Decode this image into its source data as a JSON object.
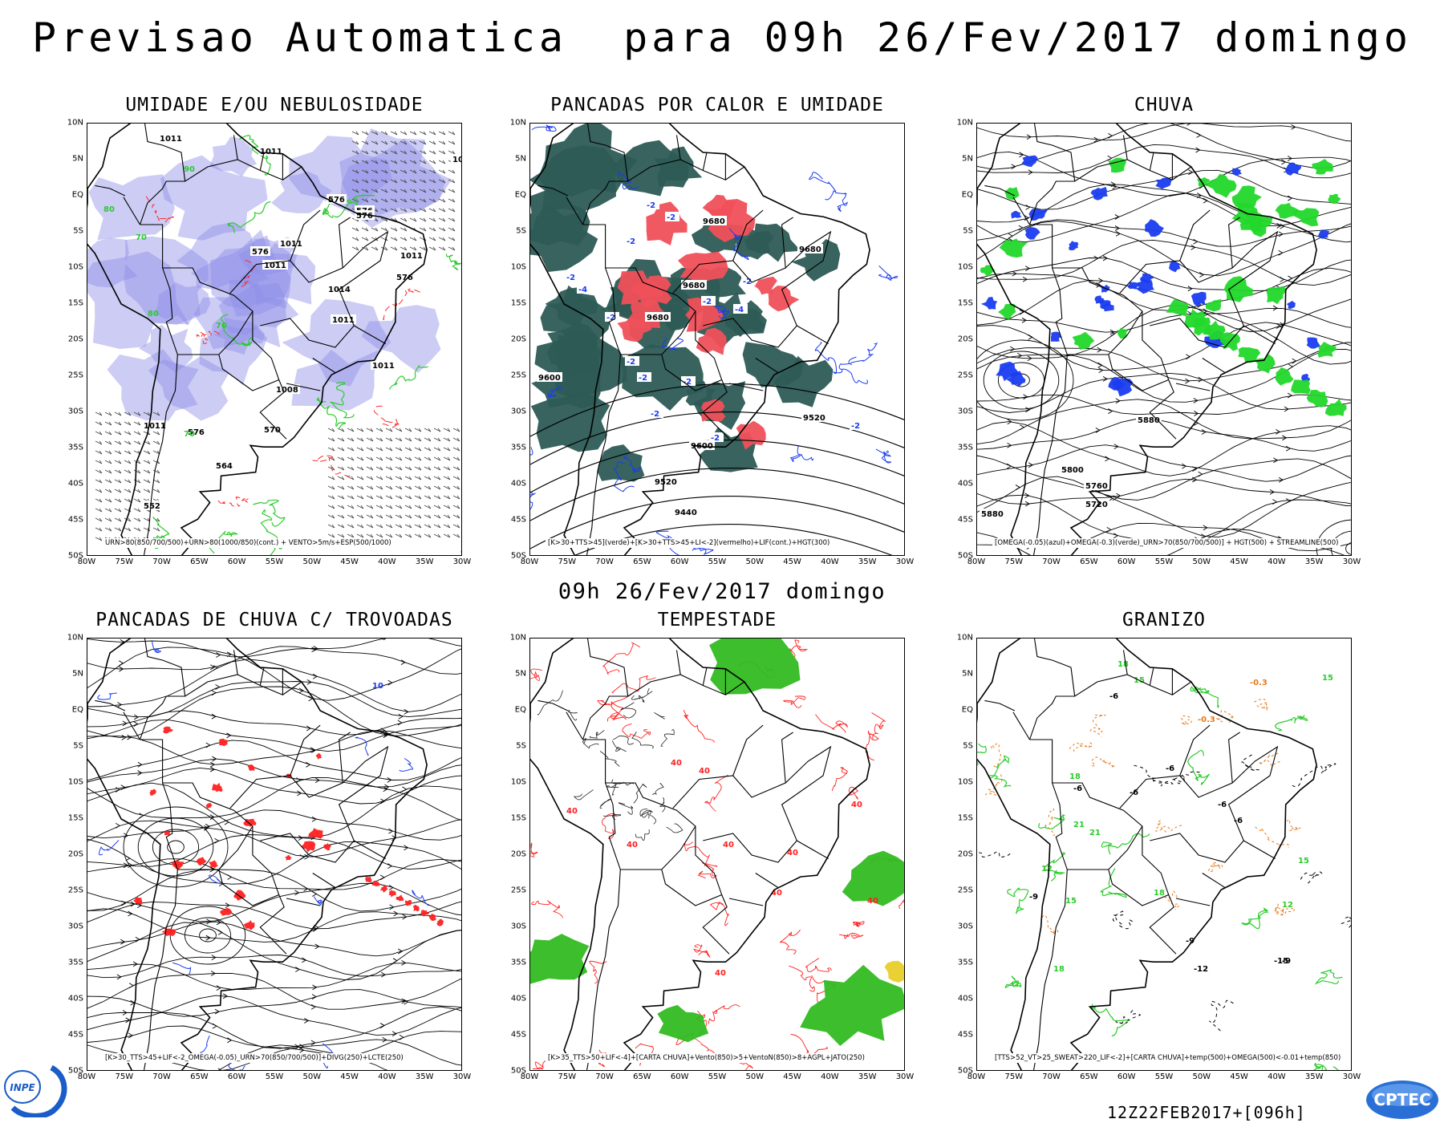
{
  "header": {
    "title": "Previsao Automatica  para 09h 26/Fev/2017 domingo",
    "subtitle": "09h 26/Fev/2017 domingo",
    "run_id": "12Z22FEB2017+[096h]"
  },
  "axes": {
    "lat_labels": [
      "10N",
      "5N",
      "EQ",
      "5S",
      "10S",
      "15S",
      "20S",
      "25S",
      "30S",
      "35S",
      "40S",
      "45S",
      "50S"
    ],
    "lon_labels": [
      "80W",
      "75W",
      "70W",
      "65W",
      "60W",
      "55W",
      "50W",
      "45W",
      "40W",
      "35W",
      "30W"
    ]
  },
  "panels": [
    {
      "title": "UMIDADE E/OU NEBULOSIDADE",
      "caption": "URN>80(850/700/500)+URN>80(1000/850)(cont.) + VENTO>5m/s+ESP(500/1000)",
      "labels": [
        "1011",
        "1011",
        "1011",
        "576",
        "576",
        "576",
        "1011",
        "576",
        "1011",
        "1011",
        "576",
        "1011",
        "1014",
        "1011",
        "1008",
        "1011",
        "576",
        "570",
        "564",
        "552"
      ],
      "green_labels": [
        "80",
        "70",
        "90",
        "80",
        "70",
        "70"
      ]
    },
    {
      "title": "PANCADAS POR CALOR E UMIDADE",
      "caption": "[K>30+TTS>45](verde)+[K>30+TTS>45+LI<-2](vermelho)+LIF(cont.)+HGT(300)",
      "labels": [
        "9680",
        "9680",
        "9680",
        "9680",
        "9600",
        "9520",
        "9600",
        "9520",
        "9440"
      ],
      "blue_labels": [
        "-2",
        "-2",
        "-2",
        "-2",
        "-4",
        "-2",
        "-2",
        "-4",
        "-2",
        "-2",
        "-2",
        "-2",
        "-2",
        "-2",
        "-2"
      ]
    },
    {
      "title": "CHUVA",
      "caption": "[OMEGA(-0.05)(azul)+OMEGA(-0.3)(verde)_URN>70(850/700/500)] + HGT(500) + STREAMLINE(500)",
      "labels": [
        "5880",
        "5800",
        "5760",
        "5720",
        "5880"
      ]
    },
    {
      "title": "PANCADAS DE CHUVA C/ TROVOADAS",
      "caption": "[K>30_TTS>45+LIF<-2_OMEGA(-0.05)_URN>70(850/700/500)]+DIVG(250)+LCTE(250)",
      "labels": [
        "10"
      ]
    },
    {
      "title": "TEMPESTADE",
      "caption": "[K>35_TTS>50+LIF<-4]+[CARTA CHUVA]+Vento(850)>5+VentoN(850)>8+AGPL+JATO(250)",
      "labels": [
        "40",
        "40",
        "40",
        "40",
        "40",
        "40",
        "40",
        "40",
        "40",
        "40"
      ]
    },
    {
      "title": "GRANIZO",
      "caption": "[TTS>52_VT>25_SWEAT>220_LIF<-2]+[CARTA CHUVA]+temp(500)+OMEGA(500)<-0.01+temp(850)",
      "labels": [
        "-6",
        "-6",
        "-6",
        "-6",
        "-6",
        "-6",
        "-9",
        "-9",
        "-12",
        "-15",
        "-9"
      ],
      "green_labels": [
        "15",
        "18",
        "21",
        "15",
        "12",
        "18",
        "15",
        "18",
        "12",
        "15",
        "18",
        "21"
      ],
      "orange_labels": [
        "-0.3",
        "-0.3"
      ]
    }
  ],
  "logos": {
    "inpe": "INPE",
    "cptec": "CPTEC"
  },
  "colors": {
    "humidity_fill": "#8f8fe8",
    "convective_green": "#2d5b55",
    "convective_red": "#f0505a",
    "omega_blue": "#1a3cf0",
    "omega_green": "#22d82a",
    "contour_green": "#2ccb2c",
    "contour_red": "#ff2a2a",
    "storm_red": "#ff2020",
    "storm_green": "#33bb22",
    "granizo_orange": "#e87a1a"
  }
}
